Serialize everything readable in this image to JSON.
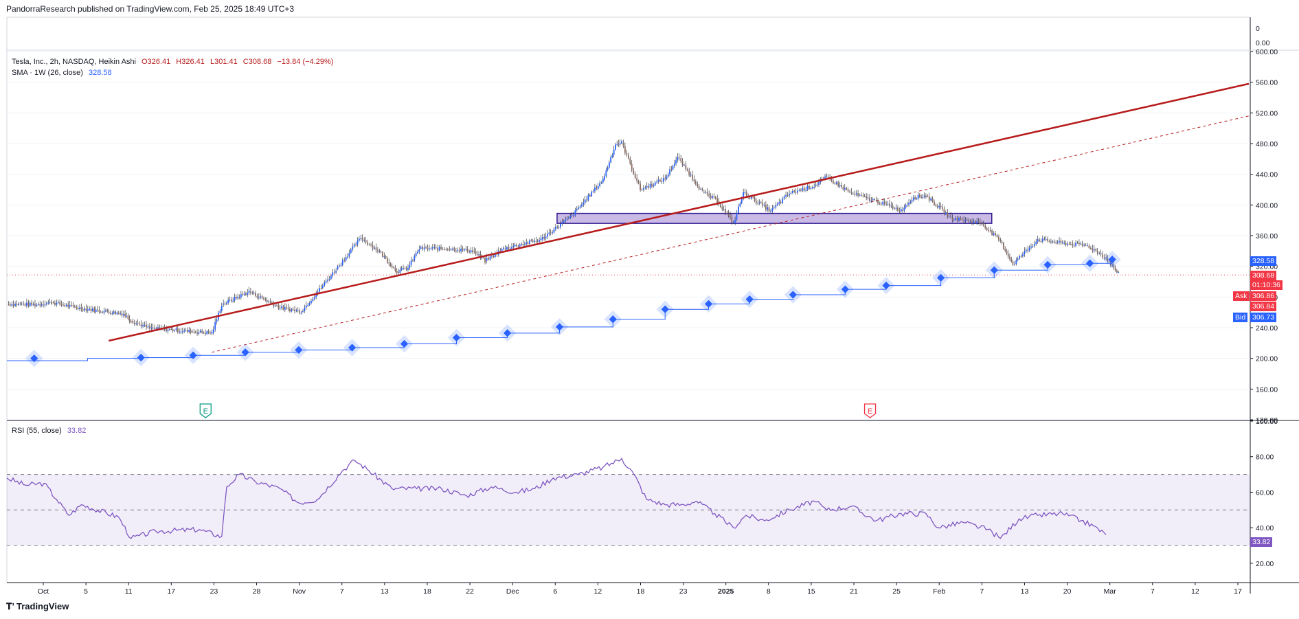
{
  "header": {
    "published": "PandorraResearch published on TradingView.com, Feb 25, 2025 18:49 UTC+3"
  },
  "legend": {
    "symbol": "Tesla, Inc., 2h, NASDAQ, Heikin Ashi",
    "open": "O326.41",
    "high": "H326.41",
    "low": "L301.41",
    "close": "C308.68",
    "change": "−13.84 (−4.29%)",
    "sma_label": "SMA · 1W (26, close)",
    "sma_value": "328.58",
    "rsi_label": "RSI (55, close)",
    "rsi_value": "33.82"
  },
  "price_tags": {
    "sma": "328.58",
    "last": "308.68",
    "countdown": "01:10:36",
    "ask_label": "Ask",
    "ask": "306.86",
    "ask2": "306.84",
    "bid_label": "Bid",
    "bid": "306.73",
    "rsi": "33.82"
  },
  "footer": {
    "brand": "TradingView"
  },
  "colors": {
    "up": "#2962ff",
    "down": "#8d6e63",
    "trendline": "#b71c1c",
    "sma": "#2962ff",
    "rsi": "#7e57c2",
    "earnings_past": "#089981",
    "earnings_next": "#f23645"
  },
  "chart_data": [
    {
      "type": "candlestick",
      "title": "Tesla, Inc., 2h, NASDAQ, Heikin Ashi",
      "y_ticks": [
        "600.00",
        "560.00",
        "520.00",
        "480.00",
        "440.00",
        "400.00",
        "360.00",
        "320.00",
        "280.00",
        "240.00",
        "200.00",
        "160.00",
        "120.00"
      ],
      "top_scale_ticks": [
        "0",
        "0.00"
      ],
      "ylim": [
        120,
        600
      ],
      "x_ticks": [
        "Oct",
        "5",
        "11",
        "17",
        "23",
        "28",
        "Nov",
        "7",
        "13",
        "18",
        "22",
        "Dec",
        "6",
        "12",
        "18",
        "23",
        "2025",
        "8",
        "15",
        "21",
        "25",
        "Feb",
        "7",
        "13",
        "20",
        "Mar",
        "7",
        "12",
        "17"
      ],
      "price_path": [
        [
          0,
          271
        ],
        [
          0.024,
          270
        ],
        [
          0.036,
          273
        ],
        [
          0.056,
          266
        ],
        [
          0.094,
          258
        ],
        [
          0.1,
          249
        ],
        [
          0.115,
          239
        ],
        [
          0.135,
          237
        ],
        [
          0.148,
          235
        ],
        [
          0.165,
          233
        ],
        [
          0.173,
          270
        ],
        [
          0.195,
          287
        ],
        [
          0.22,
          266
        ],
        [
          0.237,
          261
        ],
        [
          0.265,
          316
        ],
        [
          0.285,
          357
        ],
        [
          0.3,
          339
        ],
        [
          0.314,
          313
        ],
        [
          0.323,
          318
        ],
        [
          0.332,
          343
        ],
        [
          0.355,
          343
        ],
        [
          0.375,
          340
        ],
        [
          0.385,
          327
        ],
        [
          0.4,
          343
        ],
        [
          0.43,
          355
        ],
        [
          0.455,
          386
        ],
        [
          0.48,
          433
        ],
        [
          0.49,
          479
        ],
        [
          0.495,
          481
        ],
        [
          0.51,
          420
        ],
        [
          0.53,
          434
        ],
        [
          0.54,
          462
        ],
        [
          0.56,
          417
        ],
        [
          0.572,
          405
        ],
        [
          0.585,
          376
        ],
        [
          0.593,
          416
        ],
        [
          0.615,
          392
        ],
        [
          0.63,
          415
        ],
        [
          0.65,
          425
        ],
        [
          0.66,
          436
        ],
        [
          0.68,
          415
        ],
        [
          0.7,
          405
        ],
        [
          0.72,
          393
        ],
        [
          0.73,
          410
        ],
        [
          0.74,
          412
        ],
        [
          0.76,
          383
        ],
        [
          0.785,
          376
        ],
        [
          0.8,
          352
        ],
        [
          0.81,
          323
        ],
        [
          0.83,
          355
        ],
        [
          0.85,
          350
        ],
        [
          0.87,
          347
        ],
        [
          0.885,
          331
        ],
        [
          0.895,
          310
        ]
      ],
      "sma_steps": [
        [
          0,
          197
        ],
        [
          0.065,
          200
        ],
        [
          0.108,
          201
        ],
        [
          0.15,
          204
        ],
        [
          0.192,
          208
        ],
        [
          0.235,
          211
        ],
        [
          0.278,
          214
        ],
        [
          0.32,
          219
        ],
        [
          0.362,
          227
        ],
        [
          0.403,
          233
        ],
        [
          0.445,
          241
        ],
        [
          0.488,
          251
        ],
        [
          0.53,
          264
        ],
        [
          0.565,
          271
        ],
        [
          0.598,
          277
        ],
        [
          0.633,
          283
        ],
        [
          0.675,
          290
        ],
        [
          0.708,
          295
        ],
        [
          0.752,
          305
        ],
        [
          0.795,
          315
        ],
        [
          0.838,
          322
        ],
        [
          0.872,
          324
        ],
        [
          0.89,
          329
        ]
      ],
      "trendline_solid": {
        "from": [
          0.082,
          223
        ],
        "to": [
          1.0,
          558
        ]
      },
      "trendline_dashed": {
        "from": [
          0.165,
          208
        ],
        "to": [
          1.0,
          516
        ]
      },
      "rectangle_zone": {
        "x_from": 0.443,
        "x_to": 0.793,
        "price_low": 376,
        "price_high": 389
      },
      "current_price_line": 308.68,
      "earnings_markers": [
        "E",
        "E"
      ]
    },
    {
      "type": "line",
      "title": "RSI (55, close)",
      "y_ticks": [
        "100.00",
        "80.00",
        "60.00",
        "40.00",
        "20.00"
      ],
      "ylim": [
        13,
        100
      ],
      "bands": [
        70,
        50,
        30
      ],
      "series": [
        {
          "values": [
            [
              0,
              68
            ],
            [
              0.015,
              64
            ],
            [
              0.03,
              65
            ],
            [
              0.04,
              56
            ],
            [
              0.05,
              47
            ],
            [
              0.06,
              53
            ],
            [
              0.09,
              46
            ],
            [
              0.1,
              34
            ],
            [
              0.12,
              38
            ],
            [
              0.155,
              39
            ],
            [
              0.173,
              35
            ],
            [
              0.177,
              63
            ],
            [
              0.187,
              70
            ],
            [
              0.2,
              66
            ],
            [
              0.22,
              62
            ],
            [
              0.235,
              54
            ],
            [
              0.25,
              56
            ],
            [
              0.27,
              72
            ],
            [
              0.28,
              78
            ],
            [
              0.29,
              73
            ],
            [
              0.31,
              62
            ],
            [
              0.33,
              62
            ],
            [
              0.35,
              62
            ],
            [
              0.37,
              58
            ],
            [
              0.39,
              63
            ],
            [
              0.41,
              60
            ],
            [
              0.425,
              62
            ],
            [
              0.44,
              68
            ],
            [
              0.46,
              70
            ],
            [
              0.48,
              74
            ],
            [
              0.495,
              79
            ],
            [
              0.505,
              70
            ],
            [
              0.515,
              56
            ],
            [
              0.53,
              53
            ],
            [
              0.545,
              53
            ],
            [
              0.555,
              55
            ],
            [
              0.57,
              48
            ],
            [
              0.585,
              40
            ],
            [
              0.595,
              47
            ],
            [
              0.61,
              44
            ],
            [
              0.63,
              50
            ],
            [
              0.65,
              55
            ],
            [
              0.66,
              50
            ],
            [
              0.68,
              52
            ],
            [
              0.7,
              44
            ],
            [
              0.72,
              48
            ],
            [
              0.74,
              48
            ],
            [
              0.75,
              40
            ],
            [
              0.77,
              43
            ],
            [
              0.79,
              39
            ],
            [
              0.8,
              34
            ],
            [
              0.815,
              45
            ],
            [
              0.83,
              47
            ],
            [
              0.85,
              48
            ],
            [
              0.865,
              44
            ],
            [
              0.875,
              41
            ],
            [
              0.885,
              36
            ]
          ]
        }
      ]
    }
  ]
}
